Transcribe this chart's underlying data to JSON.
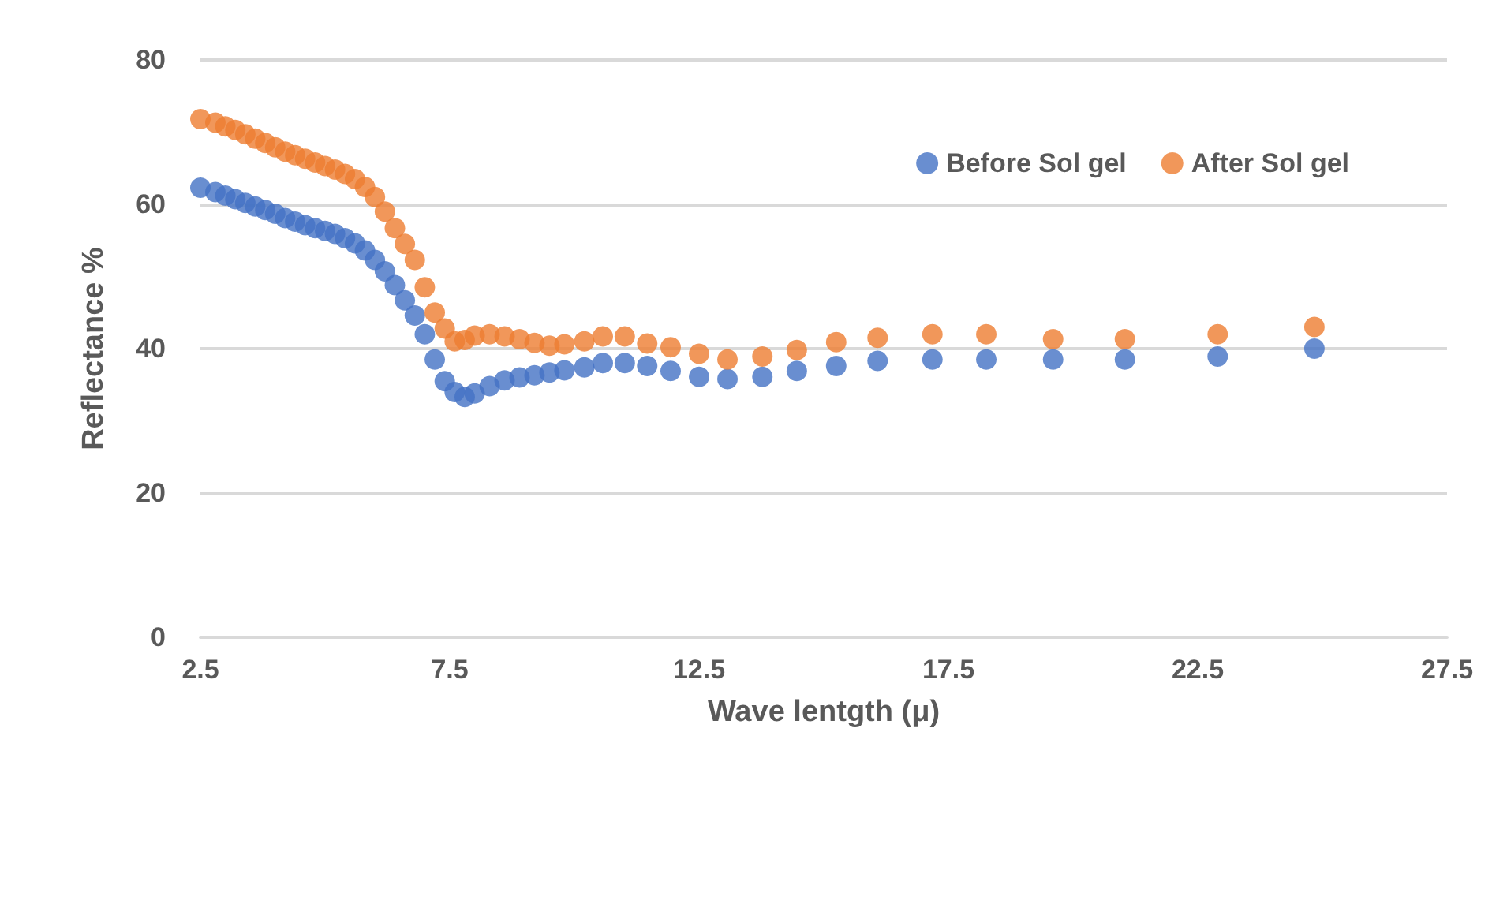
{
  "chart_data": {
    "type": "scatter",
    "xlabel": "Wave lentgth (μ)",
    "ylabel": "Reflectance %",
    "x": [
      2.5,
      2.8,
      3.0,
      3.2,
      3.4,
      3.6,
      3.8,
      4.0,
      4.2,
      4.4,
      4.6,
      4.8,
      5.0,
      5.2,
      5.4,
      5.6,
      5.8,
      6.0,
      6.2,
      6.4,
      6.6,
      6.8,
      7.0,
      7.2,
      7.4,
      7.6,
      7.8,
      8.0,
      8.3,
      8.6,
      8.9,
      9.2,
      9.5,
      9.8,
      10.2,
      10.57,
      11.01,
      11.46,
      11.93,
      12.5,
      13.07,
      13.77,
      14.46,
      15.25,
      16.08,
      17.18,
      18.26,
      19.6,
      21.04,
      22.9,
      24.84
    ],
    "series": [
      {
        "name": "Before Sol gel",
        "color": "#4472c4",
        "values": [
          62.3,
          61.7,
          61.2,
          60.7,
          60.2,
          59.7,
          59.2,
          58.7,
          58.1,
          57.6,
          57.1,
          56.7,
          56.3,
          55.9,
          55.3,
          54.6,
          53.6,
          52.3,
          50.7,
          48.8,
          46.7,
          44.6,
          42.0,
          38.5,
          35.5,
          34.0,
          33.3,
          33.8,
          34.8,
          35.6,
          36.0,
          36.3,
          36.7,
          37.0,
          37.4,
          38.0,
          38.0,
          37.6,
          36.9,
          36.1,
          35.8,
          36.1,
          36.9,
          37.6,
          38.3,
          38.5,
          38.5,
          38.5,
          38.5,
          38.9,
          40.0
        ]
      },
      {
        "name": "After Sol gel",
        "color": "#ed7d31",
        "values": [
          71.8,
          71.3,
          70.8,
          70.3,
          69.7,
          69.1,
          68.5,
          67.9,
          67.3,
          66.8,
          66.3,
          65.8,
          65.3,
          64.8,
          64.2,
          63.5,
          62.4,
          61.0,
          59.0,
          56.7,
          54.5,
          52.3,
          48.5,
          45.0,
          42.8,
          41.0,
          41.2,
          41.8,
          42.0,
          41.7,
          41.3,
          40.8,
          40.4,
          40.6,
          41.0,
          41.7,
          41.7,
          40.7,
          40.2,
          39.3,
          38.5,
          38.9,
          39.8,
          40.9,
          41.5,
          42.0,
          42.0,
          41.3,
          41.3,
          42.0,
          43.0
        ]
      }
    ],
    "xlim": [
      2.5,
      27.5
    ],
    "xticks": [
      2.5,
      7.5,
      12.5,
      17.5,
      22.5,
      27.5
    ],
    "ylim": [
      0,
      80
    ],
    "yticks": [
      0,
      20,
      40,
      60,
      80
    ],
    "grid": "y",
    "legend": "top right",
    "marker": "circle"
  }
}
